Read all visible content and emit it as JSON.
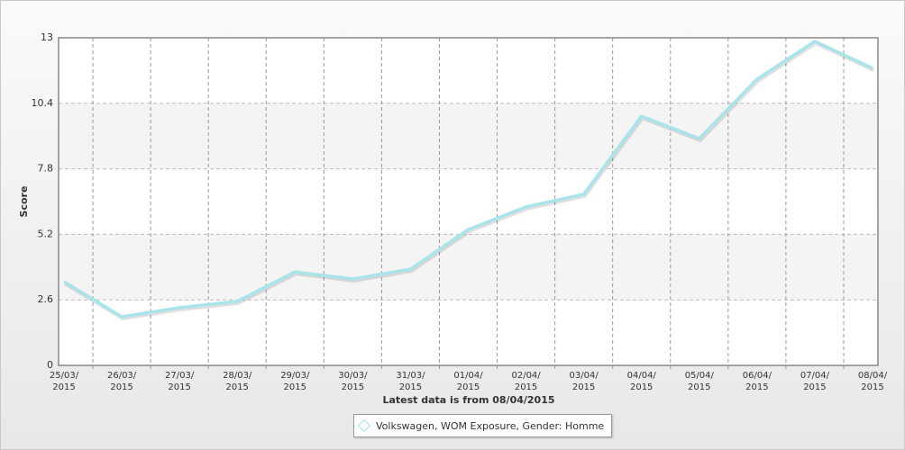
{
  "chart_data": {
    "type": "line",
    "y_label": "Score",
    "x_label": "Latest data is from 08/04/2015",
    "categories": [
      "25/03/2015",
      "26/03/2015",
      "27/03/2015",
      "28/03/2015",
      "29/03/2015",
      "30/03/2015",
      "31/03/2015",
      "01/04/2015",
      "02/04/2015",
      "03/04/2015",
      "04/04/2015",
      "05/04/2015",
      "06/04/2015",
      "07/04/2015",
      "08/04/2015"
    ],
    "series": [
      {
        "name": "Volkswagen, WOM Exposure, Gender: Homme",
        "color": "#a8e4ea",
        "values": [
          3.32,
          1.93,
          2.29,
          2.54,
          3.71,
          3.43,
          3.82,
          5.39,
          6.29,
          6.79,
          9.89,
          9.0,
          11.36,
          12.86,
          11.79
        ]
      }
    ],
    "ylim": [
      0,
      13
    ],
    "yticks": [
      0,
      2.6,
      5.2,
      7.8,
      10.4,
      13
    ],
    "grid": true
  }
}
